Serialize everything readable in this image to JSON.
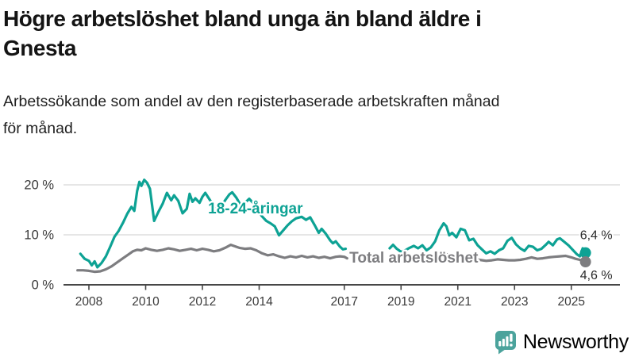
{
  "header": {
    "title": "Högre arbetslöshet bland unga än bland äldre i\nGnesta",
    "subtitle": "Arbetssökande som andel av den registerbaserade arbetskraften månad\nför månad."
  },
  "logo": {
    "text": "Newsworthy",
    "color": "#449c94"
  },
  "chart_data": {
    "type": "line",
    "title": "Högre arbetslöshet bland unga än bland äldre i Gnesta",
    "subtitle": "Arbetssökande som andel av den registerbaserade arbetskraften månad för månad.",
    "unit": "%",
    "grid": true,
    "legend_position": "inline-labels",
    "xlim": [
      2007.1,
      2026.7
    ],
    "ylim": [
      0,
      22
    ],
    "xticks": [
      2008,
      2010,
      2012,
      2014,
      2017,
      2019,
      2021,
      2023,
      2025
    ],
    "yticks": [
      0,
      10,
      20
    ],
    "ytick_labels": [
      "0 %",
      "10 %",
      "20 %"
    ],
    "grid_color": "#d7d7d7",
    "axis_color": "#474747",
    "tick_text_color": "#3a3a3a",
    "series": [
      {
        "name": "18-24-åringar",
        "color": "#0da294",
        "end_label": "6,4 %",
        "end_value": 6.4,
        "label": {
          "year": 2013.87,
          "value": 14.3,
          "anchor": "middle"
        },
        "segments": [
          [
            [
              2007.7,
              6.2
            ],
            [
              2007.85,
              5.2
            ],
            [
              2008.0,
              4.8
            ],
            [
              2008.1,
              3.9
            ],
            [
              2008.2,
              4.7
            ],
            [
              2008.3,
              3.5
            ],
            [
              2008.45,
              4.4
            ],
            [
              2008.6,
              5.7
            ],
            [
              2008.75,
              7.6
            ],
            [
              2008.9,
              9.6
            ],
            [
              2009.05,
              10.8
            ],
            [
              2009.2,
              12.4
            ],
            [
              2009.35,
              14.2
            ],
            [
              2009.5,
              15.6
            ],
            [
              2009.6,
              14.8
            ],
            [
              2009.7,
              18.8
            ],
            [
              2009.78,
              20.6
            ],
            [
              2009.85,
              19.8
            ],
            [
              2009.95,
              21.0
            ],
            [
              2010.05,
              20.4
            ],
            [
              2010.15,
              19.2
            ],
            [
              2010.3,
              12.8
            ],
            [
              2010.45,
              14.6
            ],
            [
              2010.6,
              16.2
            ],
            [
              2010.75,
              18.4
            ],
            [
              2010.9,
              16.9
            ],
            [
              2011.0,
              17.9
            ],
            [
              2011.15,
              16.8
            ],
            [
              2011.3,
              14.3
            ],
            [
              2011.45,
              15.2
            ],
            [
              2011.55,
              18.2
            ],
            [
              2011.65,
              16.6
            ],
            [
              2011.75,
              17.3
            ],
            [
              2011.9,
              16.4
            ],
            [
              2012.0,
              17.6
            ],
            [
              2012.1,
              18.4
            ],
            [
              2012.25,
              17.1
            ],
            [
              2012.4,
              15.8
            ],
            [
              2012.5,
              14.5
            ],
            [
              2012.65,
              15.5
            ],
            [
              2012.8,
              16.9
            ],
            [
              2012.95,
              18.1
            ],
            [
              2013.05,
              18.5
            ],
            [
              2013.2,
              17.4
            ],
            [
              2013.35,
              15.9
            ],
            [
              2013.5,
              16.4
            ],
            [
              2013.65,
              17.2
            ],
            [
              2013.8,
              16.3
            ],
            [
              2013.95,
              14.8
            ],
            [
              2014.1,
              13.7
            ],
            [
              2014.25,
              12.8
            ],
            [
              2014.4,
              12.3
            ],
            [
              2014.55,
              11.7
            ],
            [
              2014.7,
              9.9
            ],
            [
              2014.85,
              10.9
            ],
            [
              2015.0,
              11.9
            ],
            [
              2015.15,
              12.7
            ],
            [
              2015.3,
              13.3
            ],
            [
              2015.5,
              13.6
            ],
            [
              2015.65,
              13.0
            ],
            [
              2015.8,
              13.5
            ],
            [
              2015.95,
              12.0
            ],
            [
              2016.1,
              10.4
            ],
            [
              2016.2,
              11.2
            ],
            [
              2016.35,
              10.2
            ],
            [
              2016.5,
              8.9
            ],
            [
              2016.6,
              8.3
            ],
            [
              2016.7,
              8.7
            ],
            [
              2016.85,
              7.6
            ],
            [
              2016.95,
              7.1
            ],
            [
              2017.05,
              7.2
            ]
          ],
          [
            [
              2018.6,
              7.3
            ],
            [
              2018.72,
              8.0
            ],
            [
              2018.85,
              7.2
            ],
            [
              2019.0,
              6.6
            ],
            [
              2019.15,
              6.9
            ],
            [
              2019.3,
              7.4
            ],
            [
              2019.45,
              7.8
            ],
            [
              2019.6,
              7.3
            ],
            [
              2019.75,
              7.9
            ],
            [
              2019.9,
              6.9
            ],
            [
              2020.05,
              7.5
            ],
            [
              2020.2,
              8.7
            ],
            [
              2020.35,
              10.9
            ],
            [
              2020.5,
              12.3
            ],
            [
              2020.6,
              11.7
            ],
            [
              2020.7,
              9.9
            ],
            [
              2020.8,
              10.4
            ],
            [
              2020.95,
              9.5
            ],
            [
              2021.1,
              11.2
            ],
            [
              2021.25,
              10.9
            ],
            [
              2021.4,
              8.9
            ],
            [
              2021.55,
              9.2
            ],
            [
              2021.7,
              7.9
            ],
            [
              2021.85,
              7.1
            ],
            [
              2022.0,
              6.3
            ],
            [
              2022.15,
              6.7
            ],
            [
              2022.3,
              6.2
            ],
            [
              2022.45,
              6.9
            ],
            [
              2022.6,
              7.3
            ],
            [
              2022.75,
              8.8
            ],
            [
              2022.9,
              9.4
            ],
            [
              2023.05,
              8.1
            ],
            [
              2023.2,
              7.3
            ],
            [
              2023.35,
              6.8
            ],
            [
              2023.5,
              7.8
            ],
            [
              2023.65,
              7.6
            ],
            [
              2023.8,
              6.9
            ],
            [
              2023.95,
              7.2
            ],
            [
              2024.1,
              8.0
            ],
            [
              2024.2,
              8.6
            ],
            [
              2024.35,
              7.9
            ],
            [
              2024.5,
              9.1
            ],
            [
              2024.6,
              9.3
            ],
            [
              2024.75,
              8.6
            ],
            [
              2024.9,
              7.9
            ],
            [
              2025.05,
              7.0
            ],
            [
              2025.2,
              6.1
            ],
            [
              2025.3,
              5.7
            ],
            [
              2025.4,
              7.3
            ],
            [
              2025.5,
              6.4
            ]
          ]
        ]
      },
      {
        "name": "Total arbetslöshet",
        "color": "#7d7d80",
        "end_label": "4,6 %",
        "end_value": 4.6,
        "label": {
          "year": 2017.18,
          "value": 4.45,
          "anchor": "start"
        },
        "segments": [
          [
            [
              2007.6,
              2.9
            ],
            [
              2007.8,
              2.9
            ],
            [
              2008.0,
              2.8
            ],
            [
              2008.2,
              2.6
            ],
            [
              2008.4,
              2.7
            ],
            [
              2008.6,
              3.1
            ],
            [
              2008.8,
              3.7
            ],
            [
              2009.0,
              4.5
            ],
            [
              2009.2,
              5.3
            ],
            [
              2009.4,
              6.1
            ],
            [
              2009.55,
              6.7
            ],
            [
              2009.7,
              7.0
            ],
            [
              2009.85,
              6.9
            ],
            [
              2010.0,
              7.3
            ],
            [
              2010.2,
              7.0
            ],
            [
              2010.4,
              6.8
            ],
            [
              2010.6,
              7.0
            ],
            [
              2010.8,
              7.3
            ],
            [
              2011.0,
              7.1
            ],
            [
              2011.2,
              6.8
            ],
            [
              2011.4,
              7.0
            ],
            [
              2011.6,
              7.2
            ],
            [
              2011.8,
              6.9
            ],
            [
              2012.0,
              7.2
            ],
            [
              2012.2,
              7.0
            ],
            [
              2012.4,
              6.7
            ],
            [
              2012.6,
              6.9
            ],
            [
              2012.8,
              7.4
            ],
            [
              2013.0,
              8.0
            ],
            [
              2013.15,
              7.7
            ],
            [
              2013.3,
              7.4
            ],
            [
              2013.5,
              7.2
            ],
            [
              2013.7,
              7.3
            ],
            [
              2013.9,
              6.9
            ],
            [
              2014.1,
              6.3
            ],
            [
              2014.3,
              5.9
            ],
            [
              2014.5,
              6.1
            ],
            [
              2014.7,
              5.7
            ],
            [
              2014.9,
              5.4
            ],
            [
              2015.1,
              5.7
            ],
            [
              2015.3,
              5.5
            ],
            [
              2015.5,
              5.8
            ],
            [
              2015.7,
              5.5
            ],
            [
              2015.9,
              5.7
            ],
            [
              2016.1,
              5.4
            ],
            [
              2016.3,
              5.6
            ],
            [
              2016.5,
              5.3
            ],
            [
              2016.7,
              5.6
            ],
            [
              2016.85,
              5.7
            ],
            [
              2017.0,
              5.6
            ],
            [
              2017.1,
              5.3
            ]
          ],
          [
            [
              2018.6,
              4.7
            ],
            [
              2018.8,
              4.9
            ],
            [
              2019.0,
              4.6
            ],
            [
              2019.25,
              4.8
            ],
            [
              2019.5,
              4.5
            ],
            [
              2019.75,
              4.7
            ],
            [
              2020.0,
              5.0
            ],
            [
              2020.25,
              5.7
            ],
            [
              2020.5,
              6.2
            ],
            [
              2020.75,
              6.0
            ],
            [
              2021.0,
              5.8
            ],
            [
              2021.25,
              5.6
            ],
            [
              2021.5,
              5.3
            ],
            [
              2021.75,
              5.0
            ],
            [
              2022.0,
              4.8
            ],
            [
              2022.2,
              4.9
            ],
            [
              2022.4,
              5.1
            ],
            [
              2022.6,
              5.0
            ],
            [
              2022.8,
              4.9
            ],
            [
              2023.0,
              4.9
            ],
            [
              2023.2,
              5.0
            ],
            [
              2023.4,
              5.2
            ],
            [
              2023.6,
              5.5
            ],
            [
              2023.8,
              5.2
            ],
            [
              2024.0,
              5.3
            ],
            [
              2024.2,
              5.5
            ],
            [
              2024.4,
              5.6
            ],
            [
              2024.6,
              5.7
            ],
            [
              2024.8,
              5.8
            ],
            [
              2025.0,
              5.5
            ],
            [
              2025.15,
              5.2
            ],
            [
              2025.3,
              5.0
            ],
            [
              2025.5,
              4.6
            ]
          ]
        ]
      }
    ]
  }
}
